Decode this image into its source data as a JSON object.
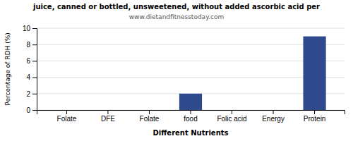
{
  "chart_data": {
    "type": "bar",
    "title": "juice, canned or bottled, unsweetened, without added ascorbic acid per",
    "subtitle": "www.dietandfitnesstoday.com",
    "categories": [
      "Folate",
      "DFE",
      "Folate",
      "food",
      "Folic acid",
      "Energy",
      "Protein"
    ],
    "values": [
      0,
      0,
      0,
      2,
      0,
      0,
      9
    ],
    "color": "#2e4a8c",
    "xlabel": "Different Nutrients",
    "ylabel": "Percentage of RDH (%)",
    "ylim": [
      0,
      10
    ],
    "yticks": [
      0,
      2,
      4,
      6,
      8,
      10
    ],
    "grid": true
  }
}
